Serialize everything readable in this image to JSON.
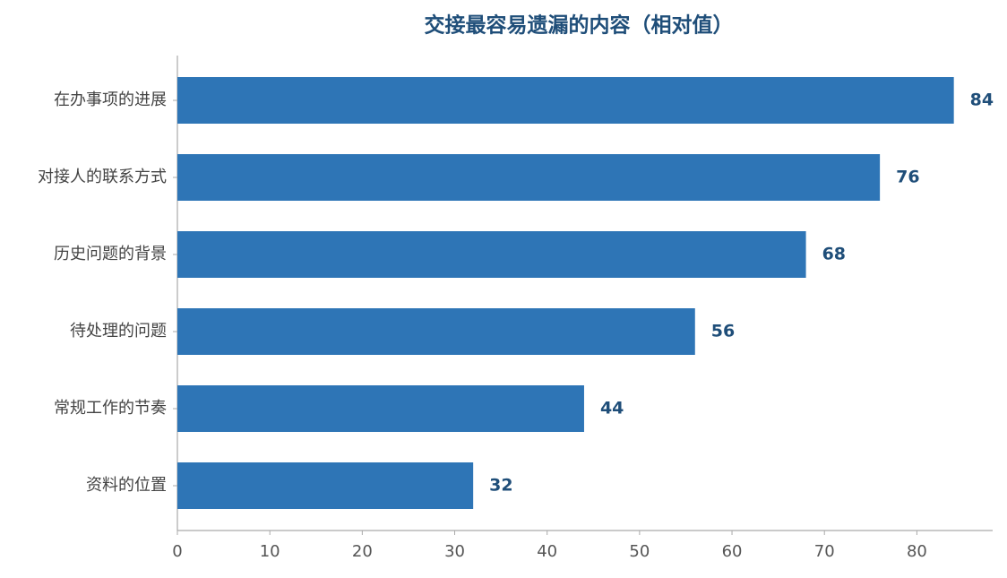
{
  "chart_data": {
    "type": "barh",
    "title": "交接最容易遗漏的内容（相对值）",
    "categories": [
      "在办事项的进展",
      "对接人的联系方式",
      "历史问题的背景",
      "待处理的问题",
      "常规工作的节奏",
      "资料的位置"
    ],
    "values": [
      84,
      76,
      68,
      56,
      44,
      32
    ],
    "color": "#2e75b6",
    "label_color": "#1f4e79",
    "xlim": [
      0,
      88.2
    ],
    "xticks": [
      0,
      10,
      20,
      30,
      40,
      50,
      60,
      70,
      80
    ],
    "grid": false
  }
}
